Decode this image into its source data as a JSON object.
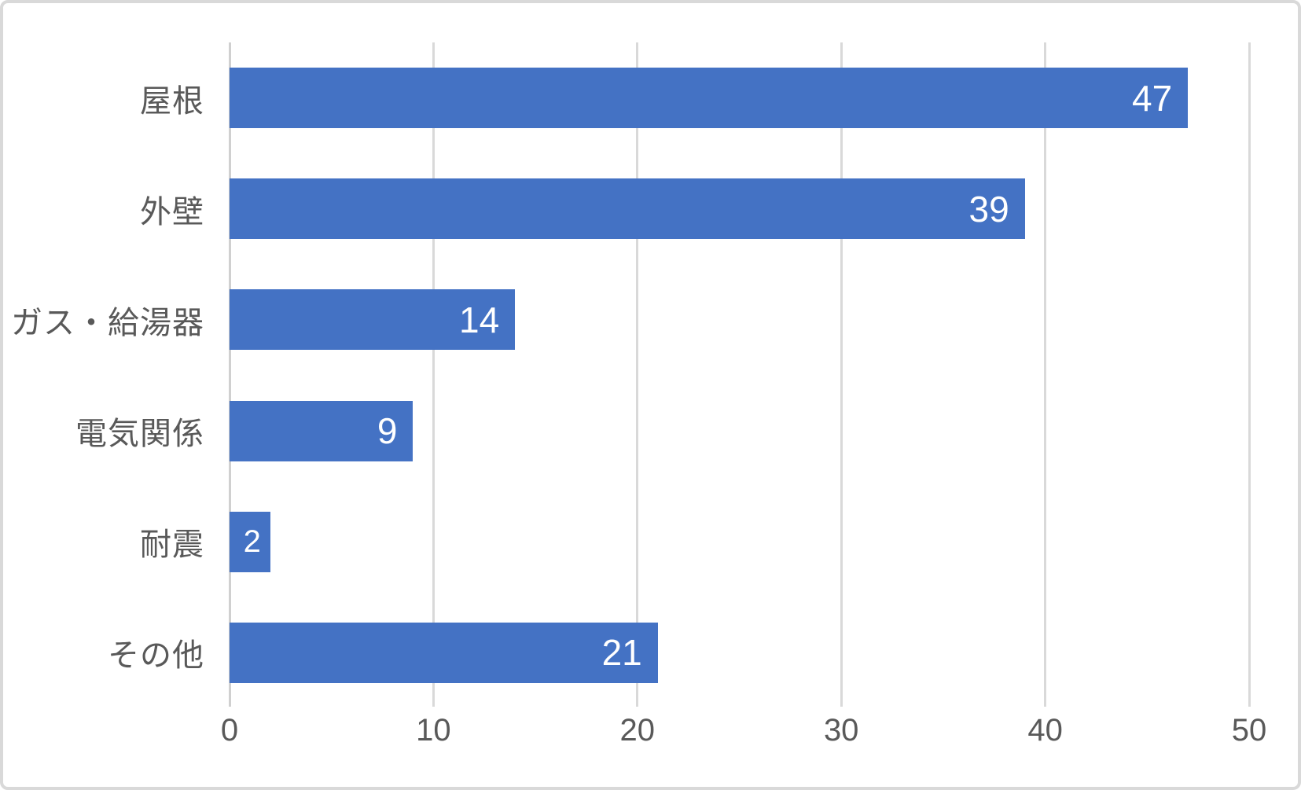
{
  "chart_data": {
    "type": "bar",
    "orientation": "horizontal",
    "title": "",
    "xlabel": "",
    "ylabel": "",
    "categories": [
      "屋根",
      "外壁",
      "ガス・給湯器",
      "電気関係",
      "耐震",
      "その他"
    ],
    "values": [
      47,
      39,
      14,
      9,
      2,
      21
    ],
    "value_labels": [
      "47",
      "39",
      "14",
      "9",
      "2",
      "21"
    ],
    "xlim": [
      0,
      50
    ],
    "x_ticks": [
      0,
      10,
      20,
      30,
      40,
      50
    ],
    "x_tick_labels": [
      "0",
      "10",
      "20",
      "30",
      "40",
      "50"
    ],
    "grid": true,
    "legend": false,
    "bar_color": "#4472c4",
    "value_label_color": "#ffffff",
    "axis_text_color": "#595959",
    "gridline_color": "#d9d9d9",
    "frame_border_color": "#d9d9d9",
    "background_color": "#ffffff"
  }
}
